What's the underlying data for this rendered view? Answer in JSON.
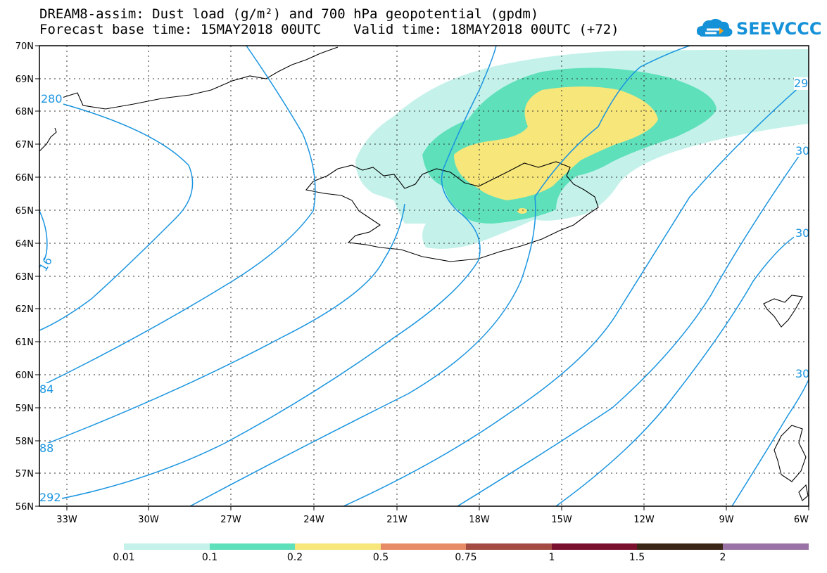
{
  "title": {
    "line1": "DREAM8-assim: Dust load (g/m²) and 700 hPa geopotential (gpdm)",
    "line2": "Forecast base time: 15MAY2018 00UTC    Valid time: 18MAY2018 00UTC (+72)"
  },
  "logo": {
    "text": "SEEVCCC",
    "icon": "cloud-icon",
    "color": "#1591d8"
  },
  "map": {
    "lat_labels": [
      "70N",
      "69N",
      "68N",
      "67N",
      "66N",
      "65N",
      "64N",
      "63N",
      "62N",
      "61N",
      "60N",
      "59N",
      "58N",
      "57N",
      "56N"
    ],
    "lon_labels": [
      "33W",
      "30W",
      "27W",
      "24W",
      "21W",
      "18W",
      "15W",
      "12W",
      "9W",
      "6W"
    ],
    "contour_color": "#1a95e0",
    "contour_labels": [
      "280",
      "16",
      "84",
      "88",
      "292",
      "29",
      "30",
      "30",
      "30"
    ]
  },
  "colorbar": {
    "colors": [
      "#c4f2ea",
      "#5ee0bb",
      "#f7e67a",
      "#e78b66",
      "#a34b42",
      "#7a0f2e",
      "#3a2617",
      "#9a73a6"
    ],
    "labels": [
      "0.01",
      "0.1",
      "0.2",
      "0.5",
      "0.75",
      "1",
      "1.5",
      "2"
    ]
  }
}
